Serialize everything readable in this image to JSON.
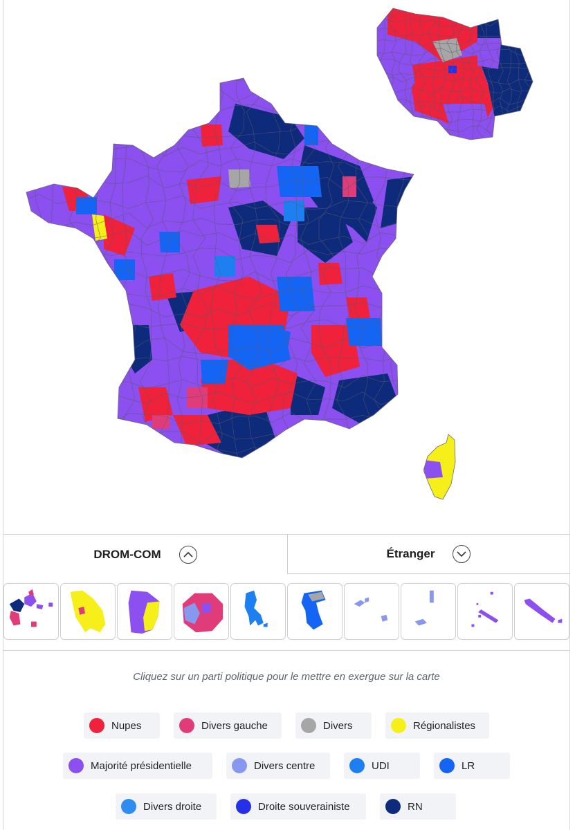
{
  "tabs": {
    "drom_com": "DROM-COM",
    "etranger": "Étranger"
  },
  "instruction": "Cliquez sur un parti politique pour le mettre en exergue sur la carte",
  "colors": {
    "nupes": "#f0213a",
    "divers_gauche": "#e03c7a",
    "divers": "#a6a6a6",
    "regionalistes": "#f6ef1a",
    "majorite": "#8c4ff0",
    "divers_centre": "#8898ef",
    "udi": "#1e7ff0",
    "lr": "#1565f5",
    "divers_droite": "#2f8cf0",
    "droite_souverainiste": "#2530e8",
    "rn": "#0e2a7a"
  },
  "legend": [
    [
      {
        "label": "Nupes",
        "color": "#f0213a"
      },
      {
        "label": "Divers gauche",
        "color": "#e03c7a"
      },
      {
        "label": "Divers",
        "color": "#a6a6a6"
      },
      {
        "label": "Régionalistes",
        "color": "#f6ef1a"
      }
    ],
    [
      {
        "label": "Majorité présidentielle",
        "color": "#8c4ff0"
      },
      {
        "label": "Divers centre",
        "color": "#8898ef"
      },
      {
        "label": "UDI",
        "color": "#1e7ff0"
      },
      {
        "label": "LR",
        "color": "#1565f5"
      }
    ],
    [
      {
        "label": "Divers droite",
        "color": "#2f8cf0"
      },
      {
        "label": "Droite souverainiste",
        "color": "#2530e8"
      },
      {
        "label": "RN",
        "color": "#0e2a7a"
      }
    ]
  ]
}
